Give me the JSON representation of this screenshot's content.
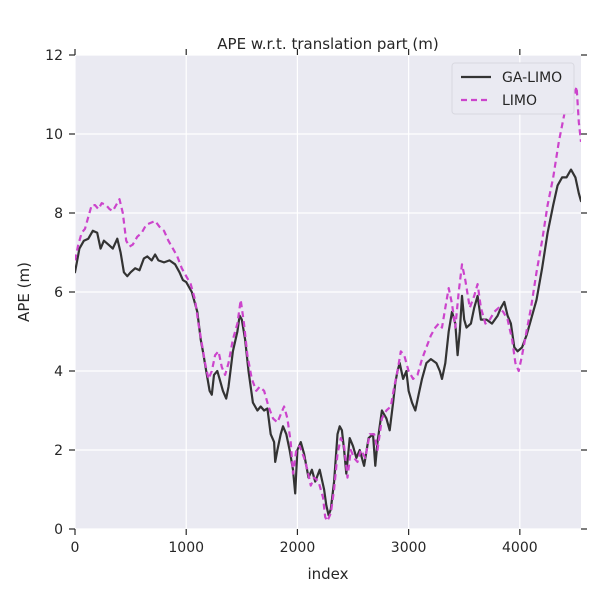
{
  "chart_data": {
    "type": "line",
    "title": "APE w.r.t. translation part (m)",
    "xlabel": "index",
    "ylabel": "APE (m)",
    "xlim": [
      0,
      4550
    ],
    "ylim": [
      0,
      12
    ],
    "xticks": [
      0,
      1000,
      2000,
      3000,
      4000
    ],
    "yticks": [
      0,
      2,
      4,
      6,
      8,
      10,
      12
    ],
    "grid": true,
    "legend": "top-right",
    "series": [
      {
        "name": "GA-LIMO",
        "color": "#333333",
        "style": "solid",
        "points": [
          [
            0,
            6.5
          ],
          [
            40,
            7.1
          ],
          [
            80,
            7.3
          ],
          [
            120,
            7.35
          ],
          [
            160,
            7.55
          ],
          [
            200,
            7.5
          ],
          [
            230,
            7.1
          ],
          [
            260,
            7.3
          ],
          [
            300,
            7.2
          ],
          [
            340,
            7.1
          ],
          [
            380,
            7.35
          ],
          [
            410,
            7.0
          ],
          [
            440,
            6.5
          ],
          [
            470,
            6.4
          ],
          [
            500,
            6.5
          ],
          [
            540,
            6.6
          ],
          [
            580,
            6.55
          ],
          [
            620,
            6.85
          ],
          [
            650,
            6.9
          ],
          [
            690,
            6.8
          ],
          [
            720,
            6.95
          ],
          [
            750,
            6.8
          ],
          [
            800,
            6.75
          ],
          [
            850,
            6.8
          ],
          [
            900,
            6.7
          ],
          [
            940,
            6.5
          ],
          [
            970,
            6.3
          ],
          [
            1000,
            6.25
          ],
          [
            1050,
            6.0
          ],
          [
            1100,
            5.5
          ],
          [
            1130,
            4.8
          ],
          [
            1150,
            4.5
          ],
          [
            1180,
            4.0
          ],
          [
            1210,
            3.5
          ],
          [
            1230,
            3.4
          ],
          [
            1250,
            3.9
          ],
          [
            1280,
            4.0
          ],
          [
            1300,
            3.8
          ],
          [
            1330,
            3.5
          ],
          [
            1360,
            3.3
          ],
          [
            1380,
            3.6
          ],
          [
            1420,
            4.5
          ],
          [
            1460,
            5.0
          ],
          [
            1480,
            5.4
          ],
          [
            1500,
            5.3
          ],
          [
            1530,
            4.8
          ],
          [
            1560,
            4.0
          ],
          [
            1600,
            3.2
          ],
          [
            1640,
            3.0
          ],
          [
            1670,
            3.1
          ],
          [
            1700,
            3.0
          ],
          [
            1730,
            3.05
          ],
          [
            1760,
            2.4
          ],
          [
            1790,
            2.2
          ],
          [
            1800,
            1.7
          ],
          [
            1820,
            2.0
          ],
          [
            1850,
            2.4
          ],
          [
            1870,
            2.6
          ],
          [
            1900,
            2.4
          ],
          [
            1930,
            2.0
          ],
          [
            1960,
            1.5
          ],
          [
            1980,
            0.9
          ],
          [
            2000,
            2.0
          ],
          [
            2030,
            2.2
          ],
          [
            2060,
            1.9
          ],
          [
            2100,
            1.3
          ],
          [
            2130,
            1.5
          ],
          [
            2160,
            1.2
          ],
          [
            2200,
            1.5
          ],
          [
            2240,
            1.0
          ],
          [
            2260,
            0.6
          ],
          [
            2280,
            0.35
          ],
          [
            2300,
            0.5
          ],
          [
            2330,
            1.2
          ],
          [
            2360,
            2.4
          ],
          [
            2380,
            2.6
          ],
          [
            2400,
            2.5
          ],
          [
            2420,
            2.0
          ],
          [
            2440,
            1.4
          ],
          [
            2470,
            2.3
          ],
          [
            2500,
            2.1
          ],
          [
            2530,
            1.8
          ],
          [
            2560,
            2.0
          ],
          [
            2600,
            1.6
          ],
          [
            2640,
            2.3
          ],
          [
            2680,
            2.4
          ],
          [
            2700,
            1.6
          ],
          [
            2720,
            2.2
          ],
          [
            2760,
            3.0
          ],
          [
            2800,
            2.8
          ],
          [
            2830,
            2.5
          ],
          [
            2860,
            3.2
          ],
          [
            2880,
            3.7
          ],
          [
            2900,
            4.0
          ],
          [
            2920,
            4.2
          ],
          [
            2950,
            3.8
          ],
          [
            2980,
            4.0
          ],
          [
            3000,
            3.5
          ],
          [
            3030,
            3.2
          ],
          [
            3060,
            3.0
          ],
          [
            3090,
            3.4
          ],
          [
            3120,
            3.8
          ],
          [
            3160,
            4.2
          ],
          [
            3200,
            4.3
          ],
          [
            3250,
            4.2
          ],
          [
            3280,
            4.0
          ],
          [
            3300,
            3.8
          ],
          [
            3330,
            4.2
          ],
          [
            3360,
            5.0
          ],
          [
            3390,
            5.5
          ],
          [
            3420,
            5.2
          ],
          [
            3440,
            4.4
          ],
          [
            3460,
            5.0
          ],
          [
            3480,
            5.9
          ],
          [
            3500,
            5.3
          ],
          [
            3520,
            5.1
          ],
          [
            3560,
            5.2
          ],
          [
            3590,
            5.6
          ],
          [
            3620,
            5.9
          ],
          [
            3650,
            5.3
          ],
          [
            3700,
            5.3
          ],
          [
            3750,
            5.2
          ],
          [
            3800,
            5.4
          ],
          [
            3830,
            5.6
          ],
          [
            3860,
            5.75
          ],
          [
            3890,
            5.4
          ],
          [
            3920,
            5.2
          ],
          [
            3950,
            4.6
          ],
          [
            3980,
            4.5
          ],
          [
            4020,
            4.6
          ],
          [
            4060,
            4.9
          ],
          [
            4100,
            5.3
          ],
          [
            4150,
            5.8
          ],
          [
            4200,
            6.6
          ],
          [
            4250,
            7.5
          ],
          [
            4300,
            8.2
          ],
          [
            4340,
            8.7
          ],
          [
            4380,
            8.9
          ],
          [
            4420,
            8.9
          ],
          [
            4460,
            9.1
          ],
          [
            4500,
            8.9
          ],
          [
            4530,
            8.5
          ],
          [
            4550,
            8.3
          ]
        ]
      },
      {
        "name": "LIMO",
        "color": "#cc44cc",
        "style": "dashed",
        "points": [
          [
            0,
            6.8
          ],
          [
            30,
            7.2
          ],
          [
            60,
            7.5
          ],
          [
            90,
            7.6
          ],
          [
            120,
            7.9
          ],
          [
            150,
            8.2
          ],
          [
            180,
            8.2
          ],
          [
            210,
            8.1
          ],
          [
            240,
            8.25
          ],
          [
            280,
            8.2
          ],
          [
            310,
            8.1
          ],
          [
            340,
            8.05
          ],
          [
            370,
            8.2
          ],
          [
            400,
            8.35
          ],
          [
            430,
            8.0
          ],
          [
            460,
            7.3
          ],
          [
            490,
            7.15
          ],
          [
            520,
            7.2
          ],
          [
            560,
            7.4
          ],
          [
            600,
            7.5
          ],
          [
            640,
            7.7
          ],
          [
            680,
            7.75
          ],
          [
            720,
            7.8
          ],
          [
            760,
            7.65
          ],
          [
            800,
            7.55
          ],
          [
            840,
            7.3
          ],
          [
            880,
            7.1
          ],
          [
            920,
            6.9
          ],
          [
            960,
            6.6
          ],
          [
            1000,
            6.4
          ],
          [
            1040,
            6.2
          ],
          [
            1080,
            5.8
          ],
          [
            1110,
            5.2
          ],
          [
            1140,
            4.7
          ],
          [
            1170,
            4.2
          ],
          [
            1200,
            3.8
          ],
          [
            1230,
            4.0
          ],
          [
            1260,
            4.4
          ],
          [
            1290,
            4.5
          ],
          [
            1320,
            4.1
          ],
          [
            1350,
            3.9
          ],
          [
            1380,
            4.2
          ],
          [
            1420,
            4.8
          ],
          [
            1460,
            5.2
          ],
          [
            1490,
            5.8
          ],
          [
            1520,
            5.2
          ],
          [
            1550,
            4.4
          ],
          [
            1590,
            3.8
          ],
          [
            1630,
            3.5
          ],
          [
            1660,
            3.6
          ],
          [
            1700,
            3.5
          ],
          [
            1740,
            3.1
          ],
          [
            1780,
            2.8
          ],
          [
            1820,
            2.7
          ],
          [
            1850,
            2.9
          ],
          [
            1880,
            3.1
          ],
          [
            1910,
            2.8
          ],
          [
            1940,
            2.2
          ],
          [
            1960,
            1.4
          ],
          [
            1990,
            2.0
          ],
          [
            2020,
            2.1
          ],
          [
            2060,
            1.8
          ],
          [
            2090,
            1.5
          ],
          [
            2120,
            1.1
          ],
          [
            2150,
            1.3
          ],
          [
            2190,
            1.2
          ],
          [
            2230,
            0.8
          ],
          [
            2250,
            0.3
          ],
          [
            2270,
            0.2
          ],
          [
            2300,
            0.4
          ],
          [
            2330,
            1.0
          ],
          [
            2360,
            1.9
          ],
          [
            2390,
            2.3
          ],
          [
            2420,
            2.1
          ],
          [
            2450,
            1.3
          ],
          [
            2480,
            2.0
          ],
          [
            2510,
            1.8
          ],
          [
            2540,
            1.7
          ],
          [
            2570,
            2.0
          ],
          [
            2610,
            1.8
          ],
          [
            2650,
            2.4
          ],
          [
            2690,
            2.4
          ],
          [
            2720,
            2.0
          ],
          [
            2760,
            2.8
          ],
          [
            2800,
            3.0
          ],
          [
            2840,
            3.1
          ],
          [
            2870,
            3.6
          ],
          [
            2900,
            4.0
          ],
          [
            2930,
            4.5
          ],
          [
            2960,
            4.4
          ],
          [
            3000,
            4.0
          ],
          [
            3040,
            3.8
          ],
          [
            3080,
            3.9
          ],
          [
            3120,
            4.3
          ],
          [
            3160,
            4.6
          ],
          [
            3200,
            4.9
          ],
          [
            3240,
            5.1
          ],
          [
            3270,
            5.2
          ],
          [
            3300,
            5.1
          ],
          [
            3330,
            5.6
          ],
          [
            3360,
            6.1
          ],
          [
            3390,
            5.7
          ],
          [
            3420,
            5.1
          ],
          [
            3450,
            6.0
          ],
          [
            3480,
            6.7
          ],
          [
            3510,
            6.3
          ],
          [
            3550,
            5.6
          ],
          [
            3590,
            5.9
          ],
          [
            3620,
            6.2
          ],
          [
            3650,
            5.6
          ],
          [
            3690,
            5.2
          ],
          [
            3730,
            5.3
          ],
          [
            3770,
            5.5
          ],
          [
            3810,
            5.6
          ],
          [
            3850,
            5.5
          ],
          [
            3890,
            5.3
          ],
          [
            3930,
            4.8
          ],
          [
            3960,
            4.2
          ],
          [
            3990,
            4.0
          ],
          [
            4020,
            4.4
          ],
          [
            4060,
            5.0
          ],
          [
            4100,
            5.6
          ],
          [
            4150,
            6.5
          ],
          [
            4200,
            7.3
          ],
          [
            4250,
            8.2
          ],
          [
            4300,
            8.9
          ],
          [
            4350,
            9.8
          ],
          [
            4400,
            10.5
          ],
          [
            4430,
            10.9
          ],
          [
            4460,
            10.6
          ],
          [
            4490,
            11.0
          ],
          [
            4510,
            11.2
          ],
          [
            4530,
            10.3
          ],
          [
            4550,
            9.8
          ]
        ]
      }
    ]
  }
}
